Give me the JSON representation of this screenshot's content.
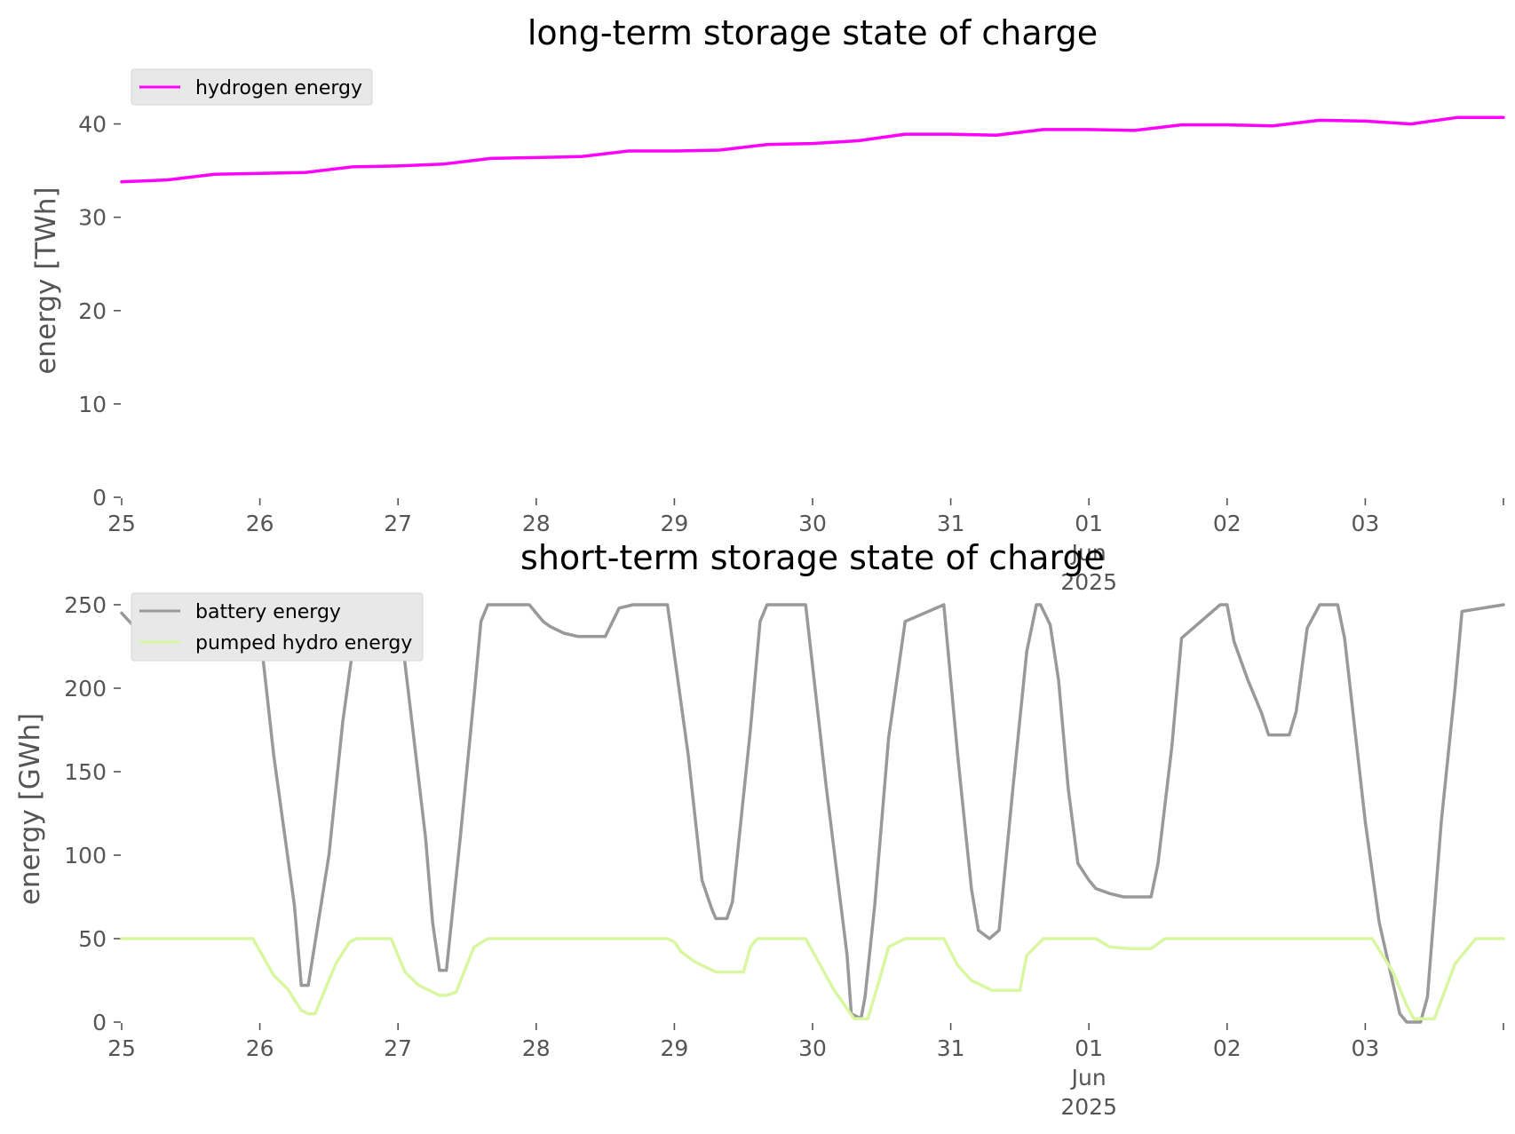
{
  "chart_data": [
    {
      "type": "line",
      "title": "long-term storage state of charge",
      "ylabel": "energy [TWh]",
      "xlabel": "",
      "ylim": [
        0,
        42
      ],
      "yticks": [
        0,
        10,
        20,
        30,
        40
      ],
      "grid": false,
      "legend_position": "top-left",
      "x_tick_labels": [
        "25",
        "26",
        "27",
        "28",
        "29",
        "30",
        "31",
        "01\nJun\n2025",
        "02",
        "03"
      ],
      "x_range_days": [
        0,
        10
      ],
      "x": [
        0,
        0.33,
        0.67,
        1.0,
        1.33,
        1.67,
        2.0,
        2.33,
        2.67,
        3.0,
        3.33,
        3.67,
        4.0,
        4.33,
        4.67,
        5.0,
        5.33,
        5.67,
        6.0,
        6.33,
        6.67,
        7.0,
        7.33,
        7.67,
        8.0,
        8.33,
        8.67,
        9.0,
        9.33,
        9.67,
        10.0
      ],
      "series": [
        {
          "name": "hydrogen energy",
          "color": "#ff00ff",
          "values": [
            33.8,
            34.0,
            34.6,
            34.7,
            34.8,
            35.4,
            35.5,
            35.7,
            36.3,
            36.4,
            36.5,
            37.1,
            37.1,
            37.2,
            37.8,
            37.9,
            38.2,
            38.9,
            38.9,
            38.8,
            39.4,
            39.4,
            39.3,
            39.9,
            39.9,
            39.8,
            40.4,
            40.3,
            40.0,
            40.7,
            40.7
          ]
        }
      ]
    },
    {
      "type": "line",
      "title": "short-term storage state of charge",
      "ylabel": "energy [GWh]",
      "xlabel": "",
      "ylim": [
        0,
        250
      ],
      "yticks": [
        0,
        50,
        100,
        150,
        200,
        250
      ],
      "grid": false,
      "legend_position": "top-left",
      "x_tick_labels": [
        "25",
        "26",
        "27",
        "28",
        "29",
        "30",
        "31",
        "01\nJun\n2025",
        "02",
        "03"
      ],
      "x_range_days": [
        0,
        10
      ],
      "series": [
        {
          "name": "battery energy",
          "color": "#999999",
          "x": [
            0,
            0.1,
            0.3,
            0.5,
            0.55,
            0.85,
            0.95,
            1.0,
            1.1,
            1.25,
            1.3,
            1.35,
            1.5,
            1.6,
            1.7,
            1.85,
            1.9,
            1.95,
            2.0,
            2.1,
            2.2,
            2.25,
            2.3,
            2.35,
            2.45,
            2.55,
            2.6,
            2.65,
            2.7,
            2.95,
            3.05,
            3.1,
            3.2,
            3.3,
            3.5,
            3.5,
            3.6,
            3.7,
            3.95,
            4.1,
            4.2,
            4.27,
            4.3,
            4.35,
            4.38,
            4.42,
            4.55,
            4.62,
            4.67,
            4.95,
            5.1,
            5.25,
            5.28,
            5.35,
            5.38,
            5.45,
            5.55,
            5.67,
            5.95,
            6.05,
            6.15,
            6.2,
            6.28,
            6.35,
            6.45,
            6.55,
            6.62,
            6.65,
            6.72,
            6.78,
            6.85,
            6.92,
            7.0,
            7.05,
            7.15,
            7.25,
            7.3,
            7.45,
            7.5,
            7.6,
            7.67,
            7.95,
            8.0,
            8.05,
            8.15,
            8.25,
            8.3,
            8.42,
            8.45,
            8.5,
            8.58,
            8.67,
            8.8,
            8.85,
            9.0,
            9.1,
            9.25,
            9.3,
            9.4,
            9.45,
            9.55,
            9.65,
            9.7,
            10.0
          ],
          "values": [
            245,
            236,
            232,
            232,
            240,
            248,
            247,
            235,
            160,
            70,
            22,
            22,
            100,
            180,
            240,
            250,
            248,
            242,
            250,
            180,
            110,
            60,
            31,
            31,
            110,
            195,
            240,
            250,
            250,
            250,
            240,
            237,
            233,
            231,
            231,
            231,
            248,
            250,
            250,
            160,
            85,
            68,
            62,
            62,
            62,
            72,
            175,
            240,
            250,
            250,
            140,
            40,
            5,
            2,
            15,
            70,
            170,
            240,
            250,
            160,
            80,
            55,
            50,
            55,
            140,
            222,
            250,
            250,
            238,
            205,
            140,
            95,
            85,
            80,
            77,
            75,
            75,
            75,
            95,
            165,
            230,
            250,
            250,
            228,
            205,
            185,
            172,
            172,
            172,
            186,
            236,
            250,
            250,
            230,
            120,
            60,
            5,
            0,
            0,
            15,
            120,
            200,
            246,
            250
          ]
        },
        {
          "name": "pumped hydro energy",
          "color": "#d9f7a1",
          "x": [
            0,
            0.95,
            1.1,
            1.2,
            1.3,
            1.35,
            1.4,
            1.55,
            1.65,
            1.7,
            1.95,
            2.05,
            2.15,
            2.3,
            2.35,
            2.42,
            2.55,
            2.65,
            2.7,
            2.95,
            3.05,
            3.1,
            3.3,
            3.5,
            3.55,
            3.6,
            3.95,
            4.0,
            4.05,
            4.15,
            4.25,
            4.3,
            4.5,
            4.55,
            4.6,
            4.67,
            4.95,
            5.05,
            5.15,
            5.25,
            5.3,
            5.35,
            5.4,
            5.5,
            5.55,
            5.67,
            5.95,
            6.05,
            6.15,
            6.3,
            6.4,
            6.5,
            6.55,
            6.67,
            6.95,
            7.05,
            7.15,
            7.3,
            7.4,
            7.45,
            7.55,
            7.67,
            7.95,
            8.0,
            8.15,
            8.3,
            8.4,
            8.5,
            8.65,
            8.95,
            9.05,
            9.2,
            9.3,
            9.35,
            9.4,
            9.5,
            9.65,
            9.8,
            10.0
          ],
          "values": [
            50,
            50,
            28,
            20,
            7,
            5,
            5,
            35,
            48,
            50,
            50,
            30,
            22,
            16,
            16,
            18,
            45,
            50,
            50,
            50,
            50,
            50,
            50,
            50,
            50,
            50,
            50,
            48,
            42,
            36,
            32,
            30,
            30,
            45,
            50,
            50,
            50,
            35,
            20,
            8,
            2,
            2,
            2,
            30,
            45,
            50,
            50,
            34,
            25,
            19,
            19,
            19,
            40,
            50,
            50,
            50,
            45,
            44,
            44,
            44,
            50,
            50,
            50,
            50,
            50,
            50,
            50,
            50,
            50,
            50,
            50,
            30,
            10,
            2,
            2,
            2,
            35,
            50,
            50
          ]
        }
      ]
    }
  ]
}
